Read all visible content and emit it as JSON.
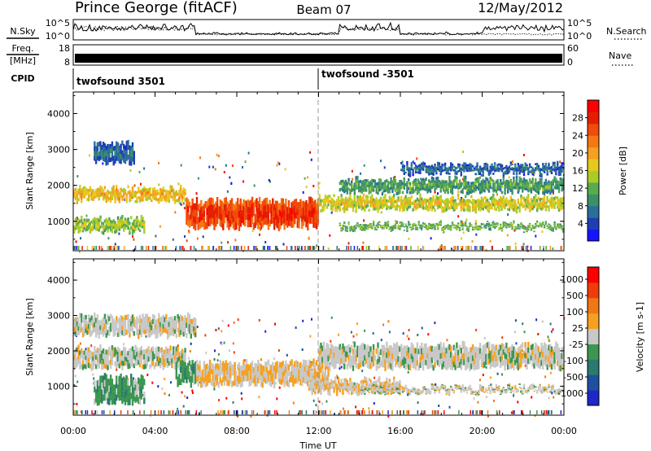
{
  "header": {
    "title": "Prince George (fitACF)",
    "beam": "Beam 07",
    "date": "12/May/2012"
  },
  "top_panels": {
    "nsky_label": "N.Sky",
    "nsearch_label": "N.Search",
    "nave_label": "Nave",
    "freq_label_line1": "Freq.",
    "freq_label_line2": "[MHz]",
    "cpid_label": "CPID",
    "count_ticks_left": [
      "10^5",
      "10^0"
    ],
    "count_ticks_right": [
      "10^5",
      "10^0"
    ],
    "freq_ticks": [
      "18",
      "8"
    ],
    "nave_ticks": [
      "60",
      "0"
    ],
    "cpid_segments": [
      {
        "label": "twofsound 3501",
        "start_hour": 0
      },
      {
        "label": "twofsound -3501",
        "start_hour": 12
      }
    ]
  },
  "chart_data": [
    {
      "type": "heatmap",
      "name": "power",
      "x_unit": "hours UT",
      "xlim": [
        0,
        24
      ],
      "ylabel": "Slant Range [km]",
      "ylim": [
        180,
        4600
      ],
      "yticks": [
        1000,
        2000,
        3000,
        4000
      ],
      "colorbar": {
        "label": "Power [dB]",
        "range": [
          0,
          32
        ],
        "ticks": [
          4,
          8,
          12,
          16,
          20,
          24,
          28
        ],
        "colors": [
          "#1414ff",
          "#1e3fb4",
          "#2a6e9a",
          "#3c9068",
          "#5aaa50",
          "#aacc28",
          "#e6c81e",
          "#f5a020",
          "#f57814",
          "#f04b0a",
          "#e61e00",
          "#ff0000"
        ]
      },
      "bands": [
        {
          "hours": [
            0.0,
            5.5
          ],
          "range_km": [
            1550,
            1950
          ],
          "value": 20
        },
        {
          "hours": [
            5.5,
            12.0
          ],
          "range_km": [
            800,
            1600
          ],
          "value": 28
        },
        {
          "hours": [
            0.0,
            3.5
          ],
          "range_km": [
            700,
            1100
          ],
          "value": 16
        },
        {
          "hours": [
            12.0,
            24.0
          ],
          "range_km": [
            1300,
            1700
          ],
          "value": 18
        },
        {
          "hours": [
            13.0,
            24.0
          ],
          "range_km": [
            1800,
            2200
          ],
          "value": 12
        },
        {
          "hours": [
            13.0,
            24.0
          ],
          "range_km": [
            750,
            950
          ],
          "value": 14
        },
        {
          "hours": [
            16.0,
            24.0
          ],
          "range_km": [
            2300,
            2600
          ],
          "value": 8
        },
        {
          "hours": [
            1.0,
            3.0
          ],
          "range_km": [
            2600,
            3200
          ],
          "value": 8
        }
      ]
    },
    {
      "type": "heatmap",
      "name": "velocity",
      "x_unit": "hours UT",
      "xlim": [
        0,
        24
      ],
      "ylabel": "Slant Range [km]",
      "xlabel": "Time UT",
      "ylim": [
        180,
        4600
      ],
      "yticks": [
        1000,
        2000,
        3000,
        4000
      ],
      "xticks": [
        "00:00",
        "04:00",
        "08:00",
        "12:00",
        "16:00",
        "20:00",
        "00:00"
      ],
      "colorbar": {
        "label": "Velocity [m s-1]",
        "range": [
          -1200,
          1200
        ],
        "ticks": [
          "1000",
          "500",
          "100",
          "25",
          "-25",
          "-100",
          "-500",
          "-1000"
        ],
        "colors": [
          "#1e28c8",
          "#1e50a0",
          "#2a7a6e",
          "#3c9650",
          "#c8c8c8",
          "#f5a020",
          "#f07814",
          "#f03c0a",
          "#ff0000"
        ]
      },
      "bands": [
        {
          "hours": [
            0.0,
            5.5
          ],
          "range_km": [
            1500,
            2100
          ],
          "value": 0
        },
        {
          "hours": [
            1.0,
            3.5
          ],
          "range_km": [
            500,
            1300
          ],
          "value": -300
        },
        {
          "hours": [
            5.0,
            6.0
          ],
          "range_km": [
            1000,
            1700
          ],
          "value": -300
        },
        {
          "hours": [
            6.0,
            12.5
          ],
          "range_km": [
            1000,
            1700
          ],
          "value": 120
        },
        {
          "hours": [
            11.5,
            16.0
          ],
          "range_km": [
            800,
            1200
          ],
          "value": 80
        },
        {
          "hours": [
            12.0,
            24.0
          ],
          "range_km": [
            1500,
            2200
          ],
          "value": 0
        },
        {
          "hours": [
            14.0,
            24.0
          ],
          "range_km": [
            800,
            1000
          ],
          "value": 0
        },
        {
          "hours": [
            0.0,
            6.0
          ],
          "range_km": [
            2400,
            3000
          ],
          "value": 0
        }
      ]
    }
  ]
}
